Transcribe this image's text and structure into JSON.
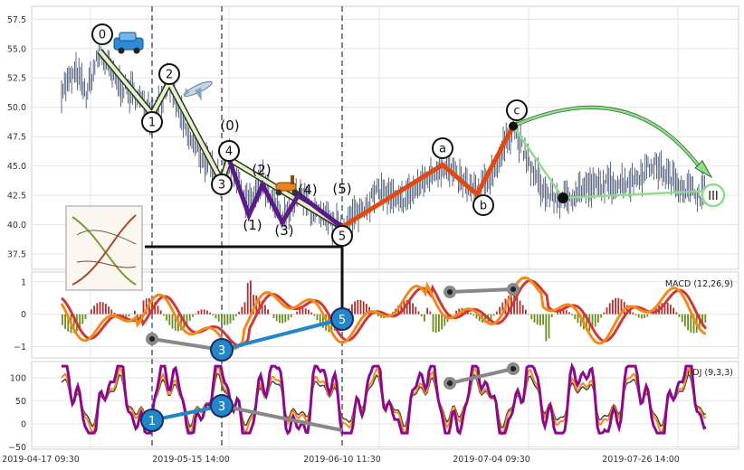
{
  "chart_data": [
    {
      "type": "line",
      "panel": "price",
      "y_ticks": [
        "37.5",
        "40.0",
        "42.5",
        "45.0",
        "47.5",
        "50.0",
        "52.5",
        "55.0",
        "57.5"
      ],
      "ylim": [
        36.2,
        58.6
      ],
      "grid": true,
      "wave_points": [
        {
          "label": "0",
          "x": 110,
          "y": 54.8
        },
        {
          "label": "1",
          "x": 168,
          "y": 49.4
        },
        {
          "label": "2",
          "x": 187,
          "y": 52.1
        },
        {
          "label": "3",
          "x": 245,
          "y": 43.7
        },
        {
          "label": "4",
          "x": 253,
          "y": 45.6
        },
        {
          "label": "5",
          "x": 378,
          "y": 39.8
        },
        {
          "label": "a",
          "x": 489,
          "y": 45.1
        },
        {
          "label": "b",
          "x": 527,
          "y": 42.6
        },
        {
          "label": "c",
          "x": 567,
          "y": 48.4
        }
      ],
      "subwave_labels": [
        "(0)",
        "(1)",
        "(2)",
        "(3)",
        "(4)",
        "(5)"
      ],
      "target_label": "III",
      "colors": {
        "impulse": "#2386c6",
        "correction": "#e2490f",
        "subwave": "#5a1b8a",
        "projection": "#8fdc8a",
        "price": "#334466"
      }
    },
    {
      "type": "bar",
      "panel": "macd",
      "title": "MACD (12,26,9)",
      "y_ticks": [
        "1",
        "0",
        "−1"
      ],
      "ylim": [
        -1.35,
        1.3
      ],
      "divergence_labels": [
        "3",
        "5"
      ],
      "colors": {
        "macd": "#f08a1c",
        "signal": "#d03838",
        "hist_pos": "#a83232",
        "hist_neg": "#6b8e23"
      }
    },
    {
      "type": "line",
      "panel": "kdj",
      "title": "KDJ (9,3,3)",
      "y_ticks": [
        "100",
        "50",
        "0",
        "−50"
      ],
      "ylim": [
        -55,
        135
      ],
      "divergence_labels": [
        "1",
        "3"
      ],
      "colors": {
        "k": "#f08a1c",
        "d": "#444444",
        "j": "#8b0a8b"
      }
    }
  ],
  "x_ticks": [
    "2019-04-17 09:30",
    "2019-05-15 14:00",
    "2019-06-10 11:30",
    "2019-07-04 09:30",
    "2019-07-26 14:00"
  ]
}
